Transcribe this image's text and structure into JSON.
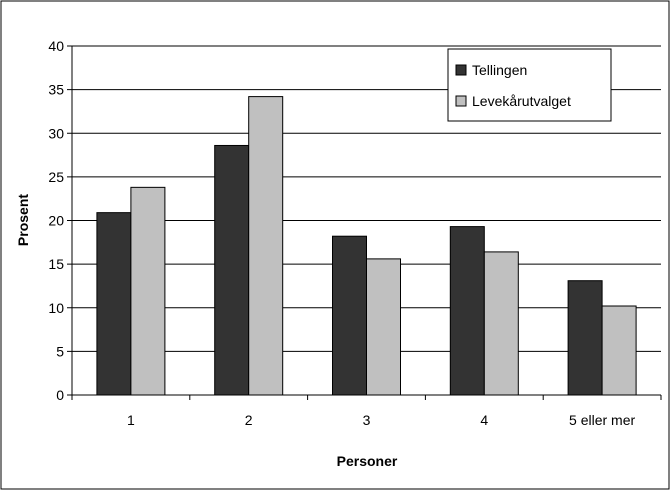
{
  "chart_data": {
    "type": "bar",
    "title": "",
    "xlabel": "Personer",
    "ylabel": "Prosent",
    "ylim": [
      0,
      40
    ],
    "yticks": [
      0,
      5,
      10,
      15,
      20,
      25,
      30,
      35,
      40
    ],
    "grid": true,
    "legend_position": "top-right",
    "categories": [
      "1",
      "2",
      "3",
      "4",
      "5 eller mer"
    ],
    "series": [
      {
        "name": "Tellingen",
        "color": "#333333",
        "values": [
          20.9,
          28.6,
          18.2,
          19.3,
          13.1
        ]
      },
      {
        "name": "Levekårutvalget",
        "color": "#c0c0c0",
        "values": [
          23.8,
          34.2,
          15.6,
          16.4,
          10.2
        ]
      }
    ]
  }
}
